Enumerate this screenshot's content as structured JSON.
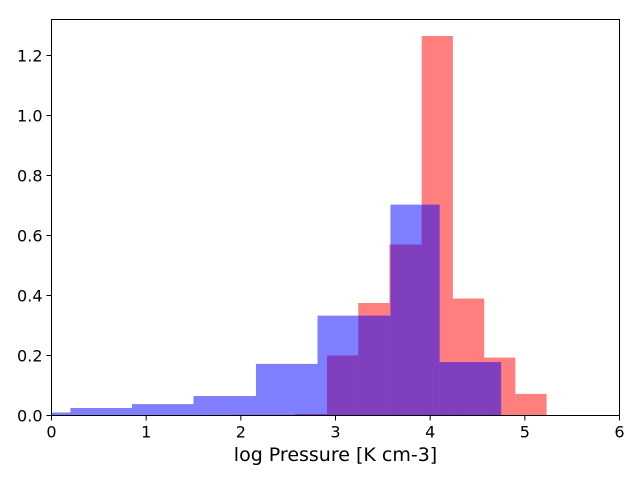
{
  "chart_data": {
    "type": "bar",
    "subtype": "histogram",
    "title": "",
    "xlabel": "log Pressure [K cm-3]",
    "ylabel": "",
    "xlim": [
      0,
      6
    ],
    "ylim": [
      0,
      1.32
    ],
    "xticks": [
      "0",
      "1",
      "2",
      "3",
      "4",
      "5",
      "6"
    ],
    "yticks": [
      "0.0",
      "0.2",
      "0.4",
      "0.6",
      "0.8",
      "1.0",
      "1.2"
    ],
    "grid": false,
    "legend": "none",
    "series": [
      {
        "color": "#ff0000",
        "opacity": 0.5,
        "bins": [
          {
            "x0": 1.91,
            "x1": 2.24,
            "value": 0.002
          },
          {
            "x0": 2.24,
            "x1": 2.57,
            "value": 0.002
          },
          {
            "x0": 2.57,
            "x1": 2.91,
            "value": 0.005
          },
          {
            "x0": 2.91,
            "x1": 3.24,
            "value": 0.2
          },
          {
            "x0": 3.24,
            "x1": 3.57,
            "value": 0.375
          },
          {
            "x0": 3.57,
            "x1": 3.91,
            "value": 0.57
          },
          {
            "x0": 3.91,
            "x1": 4.24,
            "value": 1.265
          },
          {
            "x0": 4.24,
            "x1": 4.57,
            "value": 0.39
          },
          {
            "x0": 4.57,
            "x1": 4.9,
            "value": 0.193
          },
          {
            "x0": 4.9,
            "x1": 5.23,
            "value": 0.072
          }
        ]
      },
      {
        "color": "#0000ff",
        "opacity": 0.5,
        "bins": [
          {
            "x0": 0.0,
            "x1": 0.2,
            "value": 0.01
          },
          {
            "x0": 0.2,
            "x1": 0.85,
            "value": 0.025
          },
          {
            "x0": 0.85,
            "x1": 1.5,
            "value": 0.038
          },
          {
            "x0": 1.5,
            "x1": 2.16,
            "value": 0.065
          },
          {
            "x0": 2.16,
            "x1": 2.81,
            "value": 0.172
          },
          {
            "x0": 2.81,
            "x1": 3.27,
            "value": 0.333
          },
          {
            "x0": 3.27,
            "x1": 3.58,
            "value": 0.333
          },
          {
            "x0": 3.58,
            "x1": 4.1,
            "value": 0.703
          },
          {
            "x0": 4.1,
            "x1": 4.75,
            "value": 0.178
          }
        ]
      }
    ]
  }
}
